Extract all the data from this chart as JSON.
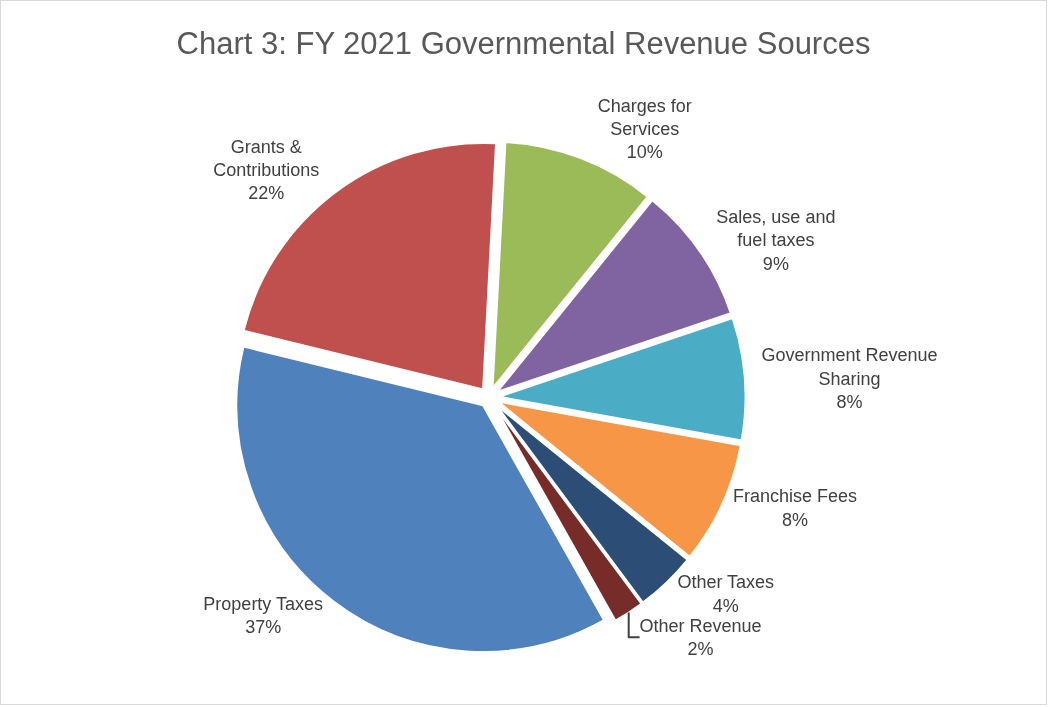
{
  "chart_data": {
    "type": "pie",
    "title": "Chart 3: FY 2021 Governmental Revenue Sources",
    "categories": [
      "Charges for Services",
      "Sales, use and fuel taxes",
      "Government Revenue Sharing",
      "Franchise Fees",
      "Other Taxes",
      "Other Revenue",
      "Property Taxes",
      "Grants & Contributions"
    ],
    "values": [
      10,
      9,
      8,
      8,
      4,
      2,
      37,
      22
    ],
    "value_labels": [
      "10%",
      "9%",
      "8%",
      "8%",
      "4%",
      "2%",
      "37%",
      "22%"
    ],
    "colors": [
      "#9bbb59",
      "#8064a2",
      "#4bacc6",
      "#f79646",
      "#2c4d75",
      "#772c2a",
      "#4f81bd",
      "#c0504d"
    ],
    "legend": false
  }
}
